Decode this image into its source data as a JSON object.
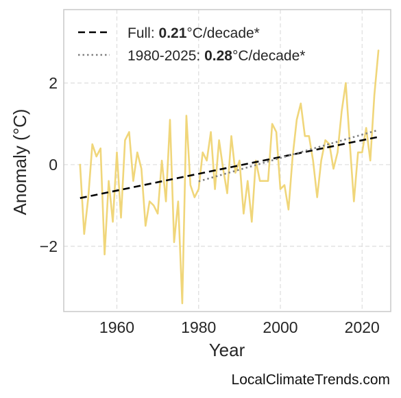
{
  "chart_data": {
    "type": "line",
    "xlabel": "Year",
    "ylabel": "Anomaly (°C)",
    "xlim": [
      1947,
      2027
    ],
    "ylim": [
      -3.6,
      3.8
    ],
    "x_ticks": [
      1960,
      1980,
      2000,
      2020
    ],
    "y_ticks": [
      -2,
      0,
      2
    ],
    "y_tick_labels": [
      "−2",
      "0",
      "2"
    ],
    "x_tick_labels": [
      "1960",
      "1980",
      "2000",
      "2020"
    ],
    "grid": true,
    "legend_position": "top-left",
    "series": [
      {
        "style": "solid",
        "color": "#f0d67a",
        "x": [
          1951,
          1952,
          1953,
          1954,
          1955,
          1956,
          1957,
          1958,
          1959,
          1960,
          1961,
          1962,
          1963,
          1964,
          1965,
          1966,
          1967,
          1968,
          1969,
          1970,
          1971,
          1972,
          1973,
          1974,
          1975,
          1976,
          1977,
          1978,
          1979,
          1980,
          1981,
          1982,
          1983,
          1984,
          1985,
          1986,
          1987,
          1988,
          1989,
          1990,
          1991,
          1992,
          1993,
          1994,
          1995,
          1996,
          1997,
          1998,
          1999,
          2000,
          2001,
          2002,
          2003,
          2004,
          2005,
          2006,
          2007,
          2008,
          2009,
          2010,
          2011,
          2012,
          2013,
          2014,
          2015,
          2016,
          2017,
          2018,
          2019,
          2020,
          2021,
          2022,
          2023,
          2024
        ],
        "y": [
          0.0,
          -1.7,
          -0.8,
          0.5,
          0.2,
          0.4,
          -2.2,
          -0.4,
          -1.4,
          0.3,
          -1.3,
          0.6,
          0.8,
          -0.4,
          0.3,
          -0.1,
          -1.5,
          -0.9,
          -1.0,
          -1.2,
          0.1,
          -0.9,
          1.1,
          -1.9,
          -0.9,
          -3.4,
          1.2,
          -0.5,
          -0.8,
          -0.6,
          0.3,
          0.1,
          0.8,
          -0.6,
          0.6,
          -0.1,
          -0.7,
          0.7,
          -0.2,
          0.1,
          -1.2,
          -0.4,
          -1.4,
          0.1,
          -0.4,
          -0.4,
          -0.4,
          1.0,
          0.8,
          -0.6,
          -0.5,
          -1.1,
          0.2,
          1.1,
          1.5,
          0.7,
          0.7,
          0.1,
          -0.8,
          0.1,
          0.6,
          0.5,
          -0.1,
          0.3,
          1.3,
          2.0,
          0.5,
          -0.9,
          0.3,
          0.3,
          0.9,
          0.1,
          1.7,
          2.8
        ]
      },
      {
        "name": "Full",
        "style": "dashed",
        "color": "#000000",
        "x": [
          1951,
          2024
        ],
        "y": [
          -0.82,
          0.68
        ]
      },
      {
        "name": "1980-2025",
        "style": "dotted",
        "color": "#808080",
        "x": [
          1980,
          2024
        ],
        "y": [
          -0.41,
          0.85
        ]
      }
    ],
    "legend": [
      {
        "prefix": "Full: ",
        "value": "0.21",
        "suffix": "°C/decade*",
        "style": "dashed",
        "color": "#000000"
      },
      {
        "prefix": "1980-2025: ",
        "value": "0.28",
        "suffix": "°C/decade*",
        "style": "dotted",
        "color": "#808080"
      }
    ]
  },
  "credit": "LocalClimateTrends.com"
}
